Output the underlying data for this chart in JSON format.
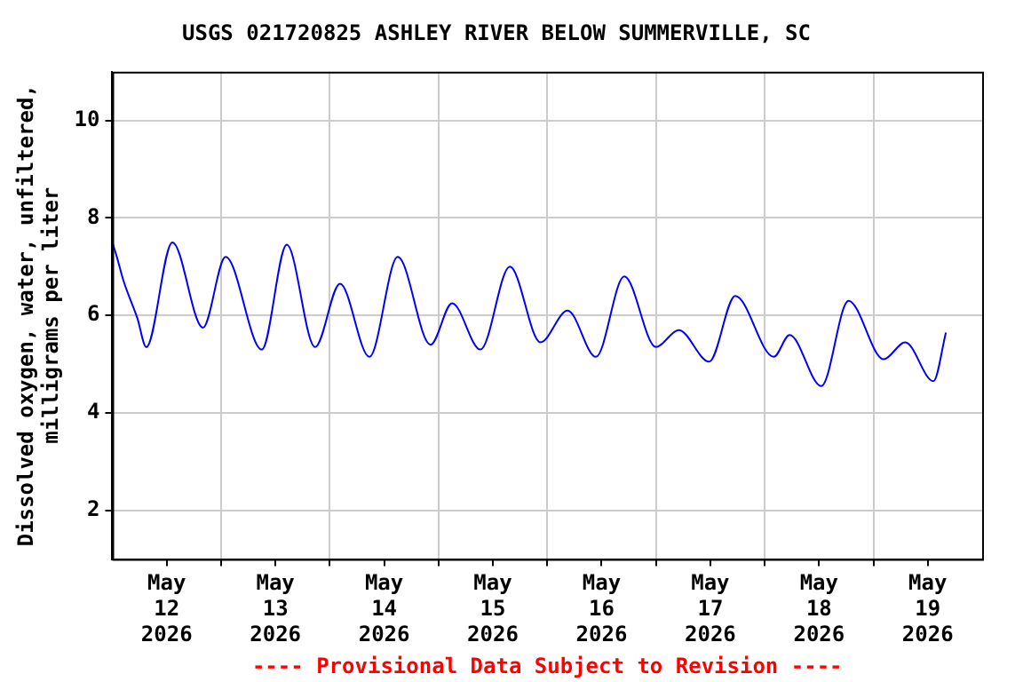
{
  "chart_data": {
    "type": "line",
    "title": "USGS 021720825 ASHLEY RIVER BELOW SUMMERVILLE, SC",
    "ylabel": "Dissolved oxygen, water, unfiltered,\nmilligrams per liter",
    "annotations": [
      "---- Provisional Data Subject to Revision ----"
    ],
    "x": [
      "2026-05-12T00:00",
      "2026-05-12T01:00",
      "2026-05-12T02:30",
      "2026-05-12T05:30",
      "2026-05-12T07:30",
      "2026-05-12T13:15",
      "2026-05-12T20:00",
      "2026-05-13T01:00",
      "2026-05-13T09:00",
      "2026-05-13T14:30",
      "2026-05-13T20:45",
      "2026-05-14T02:15",
      "2026-05-14T08:45",
      "2026-05-14T15:00",
      "2026-05-14T22:15",
      "2026-05-15T03:00",
      "2026-05-15T09:15",
      "2026-05-15T15:45",
      "2026-05-15T22:30",
      "2026-05-16T04:30",
      "2026-05-16T10:45",
      "2026-05-16T17:00",
      "2026-05-17T00:00",
      "2026-05-17T05:00",
      "2026-05-17T11:45",
      "2026-05-17T17:30",
      "2026-05-18T02:00",
      "2026-05-18T05:30",
      "2026-05-18T12:30",
      "2026-05-18T18:30",
      "2026-05-19T02:15",
      "2026-05-19T07:00",
      "2026-05-19T13:15",
      "2026-05-19T16:00"
    ],
    "series": [
      {
        "color": "#0000ff",
        "values": [
          7.5,
          7.2,
          6.7,
          5.95,
          5.35,
          7.5,
          5.75,
          7.2,
          5.3,
          7.45,
          5.35,
          6.65,
          5.15,
          7.2,
          5.4,
          6.25,
          5.3,
          7.0,
          5.45,
          6.1,
          5.15,
          6.8,
          5.35,
          5.7,
          5.05,
          6.4,
          5.15,
          5.6,
          4.55,
          6.3,
          5.1,
          5.45,
          4.65,
          5.65
        ]
      }
    ],
    "xlim": [
      "2026-05-12",
      "2026-05-20"
    ],
    "xticks": [
      {
        "value": "2026-05-12T12:00",
        "label": "May\n12\n2026"
      },
      {
        "value": "2026-05-13T00:00",
        "label": null
      },
      {
        "value": "2026-05-13T12:00",
        "label": "May\n13\n2026"
      },
      {
        "value": "2026-05-14T00:00",
        "label": null
      },
      {
        "value": "2026-05-14T12:00",
        "label": "May\n14\n2026"
      },
      {
        "value": "2026-05-15T00:00",
        "label": null
      },
      {
        "value": "2026-05-15T12:00",
        "label": "May\n15\n2026"
      },
      {
        "value": "2026-05-16T00:00",
        "label": null
      },
      {
        "value": "2026-05-16T12:00",
        "label": "May\n16\n2026"
      },
      {
        "value": "2026-05-17T00:00",
        "label": null
      },
      {
        "value": "2026-05-17T12:00",
        "label": "May\n17\n2026"
      },
      {
        "value": "2026-05-18T00:00",
        "label": null
      },
      {
        "value": "2026-05-18T12:00",
        "label": "May\n18\n2026"
      },
      {
        "value": "2026-05-19T00:00",
        "label": null
      },
      {
        "value": "2026-05-19T12:00",
        "label": "May\n19\n2026"
      }
    ],
    "ylim": [
      1,
      11
    ],
    "yticks": [
      2,
      4,
      6,
      8,
      10
    ],
    "grid": true,
    "legend": false,
    "marker": "none",
    "line_style": "solid"
  }
}
